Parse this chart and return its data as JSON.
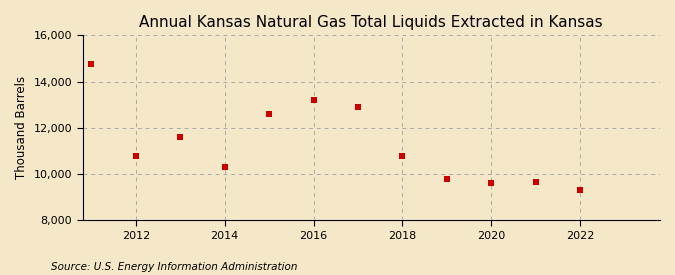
{
  "title": "Annual Kansas Natural Gas Total Liquids Extracted in Kansas",
  "ylabel": "Thousand Barrels",
  "source": "Source: U.S. Energy Information Administration",
  "years": [
    2011,
    2012,
    2013,
    2014,
    2015,
    2016,
    2017,
    2018,
    2019,
    2020,
    2021,
    2022,
    2023
  ],
  "values": [
    14750,
    10800,
    11600,
    10300,
    12600,
    13200,
    12900,
    10800,
    9800,
    9600,
    9650,
    9300,
    null
  ],
  "xlim": [
    2010.8,
    2023.8
  ],
  "ylim": [
    8000,
    16000
  ],
  "yticks": [
    8000,
    10000,
    12000,
    14000,
    16000
  ],
  "xticks": [
    2012,
    2014,
    2016,
    2018,
    2020,
    2022
  ],
  "marker_color": "#cc0000",
  "marker": "s",
  "marker_size": 4,
  "grid_color": "#aaaaaa",
  "grid_style": "--",
  "bg_color": "#f5e8c8",
  "title_fontsize": 11,
  "label_fontsize": 8.5,
  "tick_fontsize": 8,
  "source_fontsize": 7.5
}
